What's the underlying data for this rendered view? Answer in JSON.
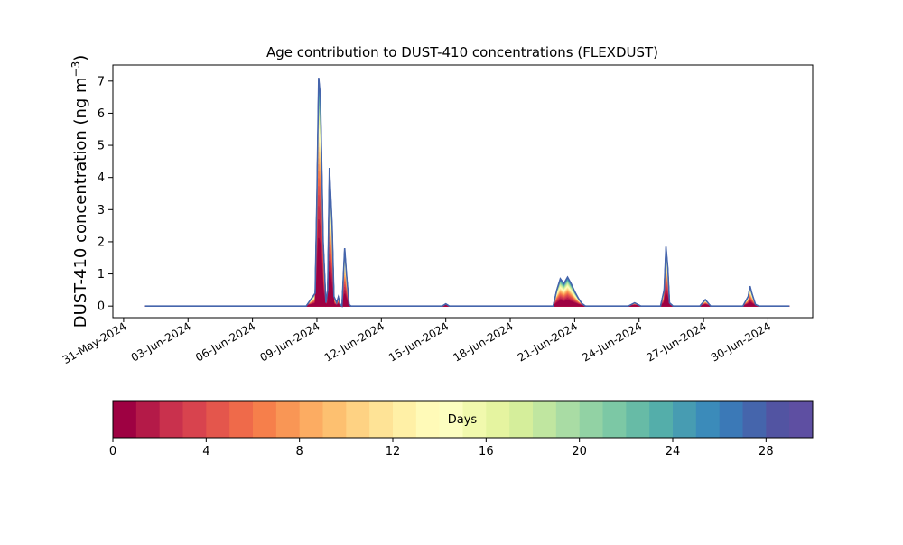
{
  "chart_data": [
    {
      "type": "area",
      "title": "Age contribution to DUST-410 concentrations (FLEXDUST)",
      "ylabel_main": "DUST-410 concentration (ng m",
      "ylabel_sup": "−3",
      "ylabel_close": ")",
      "xlabel": "",
      "stacked": true,
      "xlim": [
        "2024-05-30T12:00",
        "2024-07-02T02:00"
      ],
      "ylim": [
        -0.36,
        7.5
      ],
      "x_ticks": [
        "31-May-2024",
        "03-Jun-2024",
        "06-Jun-2024",
        "09-Jun-2024",
        "12-Jun-2024",
        "15-Jun-2024",
        "18-Jun-2024",
        "21-Jun-2024",
        "24-Jun-2024",
        "27-Jun-2024",
        "30-Jun-2024"
      ],
      "x_tick_dates": [
        "2024-05-31",
        "2024-06-03",
        "2024-06-06",
        "2024-06-09",
        "2024-06-12",
        "2024-06-15",
        "2024-06-18",
        "2024-06-21",
        "2024-06-24",
        "2024-06-27",
        "2024-06-30"
      ],
      "y_ticks": [
        "0",
        "1",
        "2",
        "3",
        "4",
        "5",
        "6",
        "7"
      ],
      "y_tick_values": [
        0,
        1,
        2,
        3,
        4,
        5,
        6,
        7
      ],
      "grid": false,
      "data_start": "2024-06-01T00:00",
      "data_end": "2024-07-01T00:00",
      "total_series": {
        "x": [
          "2024-06-01T00:00",
          "2024-06-08T12:00",
          "2024-06-08T22:00",
          "2024-06-09T00:00",
          "2024-06-09T02:00",
          "2024-06-09T04:00",
          "2024-06-09T07:00",
          "2024-06-09T10:00",
          "2024-06-09T12:00",
          "2024-06-09T14:00",
          "2024-06-09T17:00",
          "2024-06-09T19:00",
          "2024-06-09T22:00",
          "2024-06-10T00:00",
          "2024-06-10T02:00",
          "2024-06-10T04:00",
          "2024-06-10T06:00",
          "2024-06-10T07:00",
          "2024-06-10T09:00",
          "2024-06-10T12:00",
          "2024-06-10T14:00",
          "2024-06-10T17:00",
          "2024-06-11T00:00",
          "2024-06-14T20:00",
          "2024-06-15T00:00",
          "2024-06-15T04:00",
          "2024-06-20T00:00",
          "2024-06-20T04:00",
          "2024-06-20T08:00",
          "2024-06-20T12:00",
          "2024-06-20T16:00",
          "2024-06-20T20:00",
          "2024-06-21T00:00",
          "2024-06-21T04:00",
          "2024-06-21T08:00",
          "2024-06-21T12:00",
          "2024-06-23T12:00",
          "2024-06-23T19:00",
          "2024-06-24T02:00",
          "2024-06-25T00:00",
          "2024-06-25T04:00",
          "2024-06-25T06:00",
          "2024-06-25T08:00",
          "2024-06-25T10:00",
          "2024-06-25T14:00",
          "2024-06-26T20:00",
          "2024-06-27T02:00",
          "2024-06-27T08:00",
          "2024-06-28T20:00",
          "2024-06-29T02:00",
          "2024-06-29T04:00",
          "2024-06-29T06:00",
          "2024-06-29T10:00",
          "2024-06-29T14:00",
          "2024-07-01T00:00"
        ],
        "y": [
          0,
          0,
          0.4,
          3.5,
          7.1,
          6.5,
          2.0,
          0.1,
          0.5,
          4.3,
          2.5,
          0.3,
          0.1,
          0.28,
          0.05,
          0.0,
          1.2,
          1.8,
          1.0,
          0.05,
          0,
          0,
          0,
          0,
          0.07,
          0,
          0,
          0.5,
          0.85,
          0.7,
          0.9,
          0.7,
          0.45,
          0.25,
          0.08,
          0,
          0,
          0.1,
          0,
          0,
          0.5,
          1.85,
          1.2,
          0.1,
          0,
          0,
          0.2,
          0,
          0,
          0.3,
          0.62,
          0.4,
          0.05,
          0,
          0
        ]
      },
      "age_bins_days": 30,
      "colorbar": {
        "label": "Days",
        "ticks": [
          "0",
          "4",
          "8",
          "12",
          "16",
          "20",
          "24",
          "28"
        ],
        "tick_values": [
          0,
          4,
          8,
          12,
          16,
          20,
          24,
          28
        ],
        "range": [
          0,
          30
        ],
        "colors": [
          "#9e0142",
          "#b41a48",
          "#c9314d",
          "#d8434e",
          "#e4564c",
          "#ef6a4a",
          "#f67f4b",
          "#f99655",
          "#fcac62",
          "#fdc070",
          "#fed283",
          "#fee396",
          "#fff0a6",
          "#fffab8",
          "#fcfec0",
          "#f1f9ad",
          "#e5f4a0",
          "#d5ee9b",
          "#c0e6a0",
          "#a9dca4",
          "#92d2a4",
          "#7cc8a5",
          "#67bba6",
          "#54aeaa",
          "#479cb2",
          "#3b8bba",
          "#3b79b7",
          "#4565ac",
          "#5254a2",
          "#5e4fa2"
        ]
      }
    }
  ]
}
